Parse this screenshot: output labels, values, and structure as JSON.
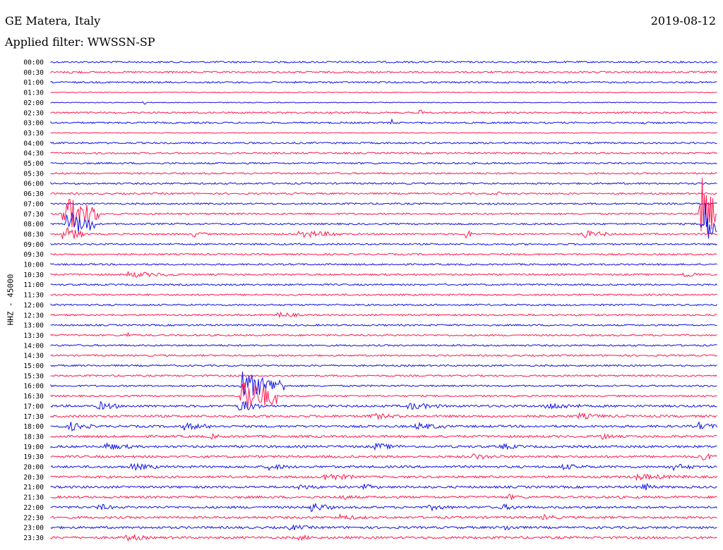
{
  "header": {
    "station": "GE Matera, Italy",
    "date": "2019-08-12",
    "filter": "Applied filter: WWSSN-SP"
  },
  "chart_data": {
    "type": "line",
    "title": "GE Matera, Italy",
    "ylabel": "HHZ - 45000",
    "row_labels": [
      "00:00",
      "00:30",
      "01:00",
      "01:30",
      "02:00",
      "02:30",
      "03:00",
      "03:30",
      "04:00",
      "04:30",
      "05:00",
      "05:30",
      "06:00",
      "06:30",
      "07:00",
      "07:30",
      "08:00",
      "08:30",
      "09:00",
      "09:30",
      "10:00",
      "10:30",
      "11:00",
      "11:30",
      "12:00",
      "12:30",
      "13:00",
      "13:30",
      "14:00",
      "14:30",
      "15:00",
      "15:30",
      "16:00",
      "16:30",
      "17:00",
      "17:30",
      "18:00",
      "18:30",
      "19:00",
      "19:30",
      "20:00",
      "20:30",
      "21:00",
      "21:30",
      "22:00",
      "22:30",
      "23:00",
      "23:30"
    ],
    "series": [
      {
        "values": "blue rows (even index)",
        "color": "#1010e8"
      },
      {
        "values": "red rows (odd index)",
        "color": "#ff1850"
      }
    ],
    "row_colors": [
      "#1010e8",
      "#ff1850"
    ],
    "grid": false
  }
}
